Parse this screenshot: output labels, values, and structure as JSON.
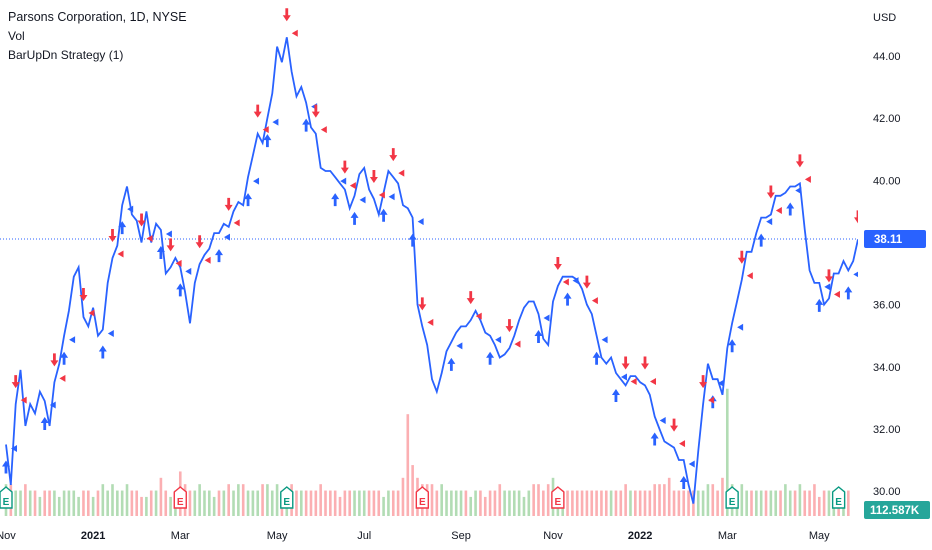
{
  "legend": {
    "title": "Parsons Corporation, 1D, NYSE",
    "vol": "Vol",
    "strategy": "BarUpDn Strategy (1)"
  },
  "colors": {
    "line": "#2962ff",
    "arrow_up": "#2962ff",
    "arrow_down": "#f23645",
    "volume_up": "#a5d6a7",
    "volume_down": "#faa1a4",
    "earnings_green": "#089981",
    "earnings_red": "#f23645",
    "price_label_bg": "#2962ff",
    "volume_label_bg": "#26a69a"
  },
  "chart_data": {
    "type": "line",
    "title": "Parsons Corporation, 1D, NYSE",
    "currency": "USD",
    "ylim": [
      29.2,
      45.8
    ],
    "y_ticks": [
      "44.00",
      "42.00",
      "40.00",
      "38.00",
      "36.00",
      "34.00",
      "32.00",
      "30.00"
    ],
    "y_tick_values": [
      44,
      42,
      40,
      38,
      36,
      34,
      32,
      30
    ],
    "x_ticks": [
      "Nov",
      "2021",
      "Mar",
      "May",
      "Jul",
      "Sep",
      "Nov",
      "2022",
      "Mar",
      "May"
    ],
    "x_tick_index": [
      0,
      18,
      36,
      56,
      74,
      94,
      113,
      131,
      149,
      168
    ],
    "x_tick_bold": [
      false,
      true,
      false,
      false,
      false,
      false,
      false,
      true,
      false,
      false
    ],
    "last_price": "38.11",
    "last_price_value": 38.11,
    "last_volume": "112.587K",
    "series": [
      {
        "name": "Close",
        "values": [
          31.5,
          30.2,
          32.8,
          33.9,
          32.1,
          32.8,
          32.5,
          33.2,
          32.9,
          32.1,
          33.5,
          34.1,
          35.0,
          35.8,
          36.9,
          37.2,
          35.6,
          35.3,
          35.9,
          35.0,
          35.2,
          36.7,
          37.5,
          37.9,
          39.2,
          39.8,
          38.9,
          38.7,
          38.0,
          39.0,
          38.0,
          38.6,
          38.4,
          37.0,
          37.2,
          37.5,
          37.2,
          36.4,
          35.4,
          36.7,
          37.3,
          37.6,
          37.8,
          38.3,
          38.3,
          38.6,
          38.5,
          39.0,
          39.3,
          39.2,
          40.1,
          40.8,
          41.5,
          41.2,
          42.0,
          42.8,
          44.3,
          43.8,
          44.6,
          43.5,
          42.7,
          43.0,
          42.5,
          41.7,
          41.5,
          40.4,
          40.3,
          40.3,
          40.1,
          39.9,
          39.7,
          39.1,
          39.5,
          40.2,
          40.4,
          39.7,
          39.4,
          38.9,
          39.6,
          40.3,
          40.1,
          39.9,
          39.2,
          39.1,
          38.8,
          36.0,
          35.3,
          34.7,
          33.6,
          33.2,
          33.8,
          34.5,
          34.8,
          35.1,
          35.3,
          35.3,
          35.5,
          35.8,
          35.5,
          35.1,
          35.0,
          34.7,
          34.3,
          34.4,
          34.6,
          35.0,
          35.5,
          35.9,
          36.1,
          36.1,
          35.7,
          34.9,
          34.7,
          36.1,
          36.6,
          36.9,
          36.9,
          36.9,
          36.8,
          36.5,
          36.0,
          35.7,
          35.0,
          34.3,
          34.1,
          34.3,
          33.8,
          33.6,
          33.4,
          33.7,
          33.7,
          33.5,
          33.4,
          33.1,
          32.4,
          32.0,
          31.6,
          31.5,
          31.4,
          31.0,
          31.0,
          30.2,
          29.6,
          31.3,
          32.8,
          34.1,
          33.6,
          33.6,
          33.1,
          34.6,
          35.4,
          36.1,
          36.8,
          37.7,
          37.7,
          38.3,
          38.8,
          38.8,
          38.9,
          39.5,
          39.5,
          39.6,
          39.8,
          39.8,
          39.9,
          38.4,
          37.1,
          36.7,
          36.7,
          36.0,
          36.2,
          37.0,
          37.0,
          37.4,
          37.1,
          37.4,
          38.1
        ]
      }
    ],
    "volume": {
      "values": [
        0.5,
        0.5,
        0.4,
        0.4,
        0.5,
        0.4,
        0.4,
        0.3,
        0.4,
        0.4,
        0.4,
        0.3,
        0.4,
        0.4,
        0.4,
        0.3,
        0.4,
        0.4,
        0.3,
        0.4,
        0.5,
        0.4,
        0.5,
        0.4,
        0.4,
        0.5,
        0.4,
        0.4,
        0.3,
        0.3,
        0.4,
        0.4,
        0.6,
        0.4,
        0.3,
        0.4,
        0.7,
        0.5,
        0.4,
        0.4,
        0.5,
        0.4,
        0.4,
        0.3,
        0.4,
        0.4,
        0.5,
        0.4,
        0.5,
        0.5,
        0.4,
        0.4,
        0.4,
        0.5,
        0.5,
        0.4,
        0.5,
        0.4,
        0.4,
        0.5,
        0.4,
        0.4,
        0.4,
        0.4,
        0.4,
        0.5,
        0.4,
        0.4,
        0.4,
        0.3,
        0.4,
        0.4,
        0.4,
        0.4,
        0.4,
        0.4,
        0.4,
        0.4,
        0.3,
        0.4,
        0.4,
        0.4,
        0.6,
        1.6,
        0.8,
        0.6,
        0.5,
        0.5,
        0.5,
        0.4,
        0.5,
        0.4,
        0.4,
        0.4,
        0.4,
        0.4,
        0.3,
        0.4,
        0.4,
        0.3,
        0.4,
        0.4,
        0.5,
        0.4,
        0.4,
        0.4,
        0.4,
        0.3,
        0.4,
        0.5,
        0.5,
        0.4,
        0.5,
        0.6,
        0.4,
        0.4,
        0.4,
        0.4,
        0.4,
        0.4,
        0.4,
        0.4,
        0.4,
        0.4,
        0.4,
        0.4,
        0.4,
        0.4,
        0.5,
        0.4,
        0.4,
        0.4,
        0.4,
        0.4,
        0.5,
        0.5,
        0.5,
        0.6,
        0.4,
        0.4,
        0.4,
        0.4,
        0.4,
        0.4,
        0.4,
        0.5,
        0.5,
        0.4,
        0.6,
        2.0,
        0.5,
        0.4,
        0.5,
        0.4,
        0.4,
        0.4,
        0.4,
        0.4,
        0.4,
        0.4,
        0.4,
        0.5,
        0.4,
        0.4,
        0.5,
        0.4,
        0.4,
        0.5,
        0.3,
        0.4,
        0.4,
        0.4,
        0.4,
        0.4,
        0.4
      ],
      "up": [
        true,
        false,
        true,
        true,
        false,
        true,
        false,
        true,
        false,
        false,
        true,
        true,
        true,
        true,
        true,
        true,
        false,
        false,
        true,
        false,
        true,
        true,
        true,
        true,
        true,
        true,
        false,
        false,
        false,
        true,
        false,
        true,
        false,
        false,
        true,
        true,
        false,
        false,
        false,
        true,
        true,
        true,
        true,
        true,
        false,
        true,
        false,
        true,
        true,
        false,
        true,
        true,
        true,
        false,
        true,
        true,
        true,
        false,
        true,
        false,
        false,
        true,
        false,
        false,
        false,
        false,
        false,
        false,
        false,
        false,
        false,
        false,
        true,
        true,
        true,
        false,
        false,
        false,
        true,
        true,
        false,
        false,
        false,
        false,
        false,
        false,
        false,
        false,
        false,
        false,
        true,
        true,
        true,
        true,
        true,
        false,
        true,
        true,
        false,
        false,
        false,
        false,
        false,
        true,
        true,
        true,
        true,
        true,
        true,
        false,
        false,
        false,
        false,
        true,
        true,
        true,
        false,
        false,
        false,
        false,
        false,
        false,
        false,
        false,
        false,
        true,
        false,
        false,
        false,
        true,
        false,
        false,
        false,
        false,
        false,
        false,
        false,
        false,
        false,
        false,
        false,
        false,
        false,
        true,
        true,
        true,
        false,
        false,
        false,
        true,
        true,
        true,
        true,
        true,
        false,
        true,
        true,
        false,
        true,
        true,
        false,
        true,
        true,
        false,
        true,
        false,
        false,
        false,
        false,
        false,
        true,
        true,
        false,
        true,
        false,
        true,
        true
      ]
    },
    "long_entries": [
      0,
      8,
      12,
      20,
      24,
      32,
      36,
      44,
      50,
      54,
      62,
      68,
      72,
      78,
      84,
      92,
      100,
      110,
      116,
      122,
      126,
      134,
      140,
      146,
      150,
      156,
      162,
      168,
      174
    ],
    "short_entries": [
      2,
      10,
      16,
      22,
      28,
      34,
      40,
      46,
      52,
      58,
      64,
      70,
      76,
      80,
      86,
      96,
      104,
      114,
      120,
      128,
      132,
      138,
      144,
      152,
      158,
      164,
      170,
      176
    ],
    "earnings": [
      {
        "index": 0,
        "label": "E",
        "color": "green"
      },
      {
        "index": 36,
        "label": "E",
        "color": "red"
      },
      {
        "index": 58,
        "label": "E",
        "color": "green"
      },
      {
        "index": 86,
        "label": "E",
        "color": "red"
      },
      {
        "index": 114,
        "label": "E",
        "color": "red"
      },
      {
        "index": 150,
        "label": "E",
        "color": "green"
      },
      {
        "index": 172,
        "label": "E",
        "color": "green"
      }
    ]
  }
}
